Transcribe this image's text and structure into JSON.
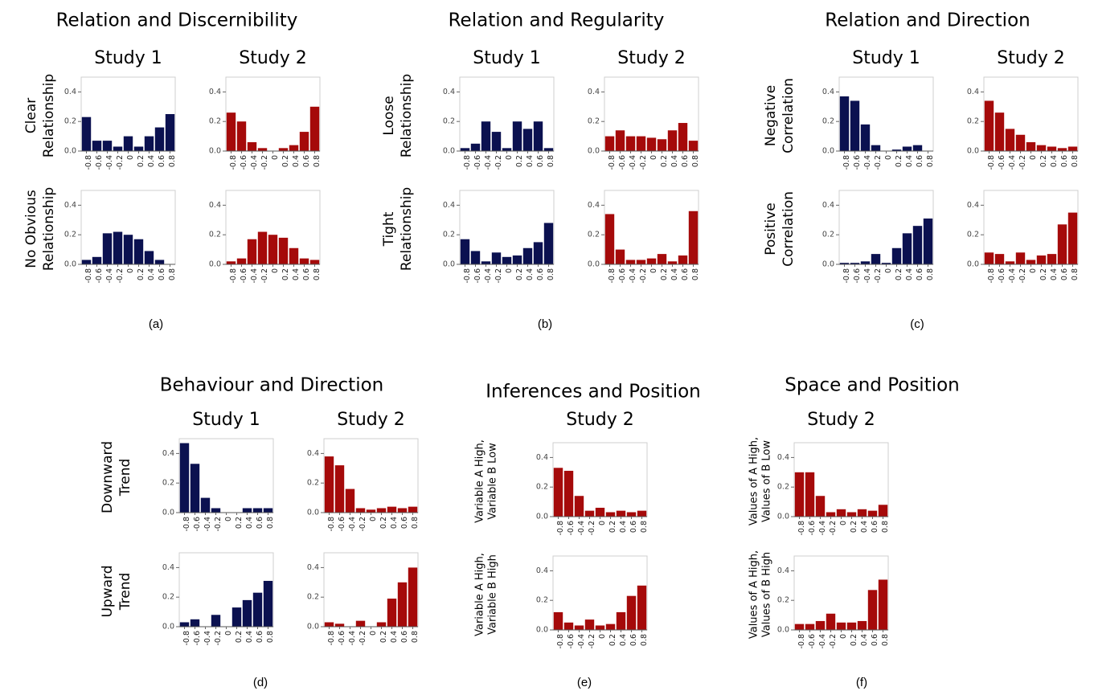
{
  "chart_data": [
    {
      "type": "bar",
      "id": "a",
      "title": "Relation and Discernibility",
      "caption": "(a)",
      "studies": [
        "Study 1",
        "Study 2"
      ],
      "rows": [
        {
          "label": [
            "Clear",
            "Relationship"
          ],
          "series": [
            {
              "study": "Study 1",
              "color": "#0b1150",
              "values": [
                0.23,
                0.07,
                0.07,
                0.03,
                0.1,
                0.03,
                0.1,
                0.16,
                0.25
              ]
            },
            {
              "study": "Study 2",
              "color": "#a50a0a",
              "values": [
                0.26,
                0.2,
                0.06,
                0.02,
                0.0,
                0.02,
                0.04,
                0.13,
                0.3
              ]
            }
          ]
        },
        {
          "label": [
            "No Obvious",
            "Relationship"
          ],
          "series": [
            {
              "study": "Study 1",
              "color": "#0b1150",
              "values": [
                0.03,
                0.05,
                0.21,
                0.22,
                0.2,
                0.17,
                0.09,
                0.03,
                0.0
              ]
            },
            {
              "study": "Study 2",
              "color": "#a50a0a",
              "values": [
                0.02,
                0.04,
                0.17,
                0.22,
                0.2,
                0.18,
                0.11,
                0.04,
                0.03
              ]
            }
          ]
        }
      ],
      "categories": [
        "-0.8",
        "-0.6",
        "-0.4",
        "-0.2",
        "0",
        "0.2",
        "0.4",
        "0.6",
        "0.8"
      ],
      "yticks": [
        "0.0",
        "0.2",
        "0.4"
      ],
      "ylim": [
        0,
        0.5
      ]
    },
    {
      "type": "bar",
      "id": "b",
      "title": "Relation and Regularity",
      "caption": "(b)",
      "studies": [
        "Study 1",
        "Study 2"
      ],
      "rows": [
        {
          "label": [
            "Loose",
            "Relationship"
          ],
          "series": [
            {
              "study": "Study 1",
              "color": "#0b1150",
              "values": [
                0.02,
                0.05,
                0.2,
                0.13,
                0.02,
                0.2,
                0.15,
                0.2,
                0.02
              ]
            },
            {
              "study": "Study 2",
              "color": "#a50a0a",
              "values": [
                0.1,
                0.14,
                0.1,
                0.1,
                0.09,
                0.08,
                0.14,
                0.19,
                0.07
              ]
            }
          ]
        },
        {
          "label": [
            "Tight",
            "Relationship"
          ],
          "series": [
            {
              "study": "Study 1",
              "color": "#0b1150",
              "values": [
                0.17,
                0.09,
                0.02,
                0.08,
                0.05,
                0.06,
                0.11,
                0.15,
                0.28
              ]
            },
            {
              "study": "Study 2",
              "color": "#a50a0a",
              "values": [
                0.34,
                0.1,
                0.03,
                0.03,
                0.04,
                0.07,
                0.02,
                0.06,
                0.36
              ]
            }
          ]
        }
      ],
      "categories": [
        "-0.8",
        "-0.6",
        "-0.4",
        "-0.2",
        "0",
        "0.2",
        "0.4",
        "0.6",
        "0.8"
      ],
      "yticks": [
        "0.0",
        "0.2",
        "0.4"
      ],
      "ylim": [
        0,
        0.5
      ]
    },
    {
      "type": "bar",
      "id": "c",
      "title": "Relation and Direction",
      "caption": "(c)",
      "studies": [
        "Study 1",
        "Study 2"
      ],
      "rows": [
        {
          "label": [
            "Negative",
            "Correlation"
          ],
          "series": [
            {
              "study": "Study 1",
              "color": "#0b1150",
              "values": [
                0.37,
                0.34,
                0.18,
                0.04,
                0.0,
                0.01,
                0.03,
                0.04,
                0.0
              ]
            },
            {
              "study": "Study 2",
              "color": "#a50a0a",
              "values": [
                0.34,
                0.26,
                0.15,
                0.11,
                0.06,
                0.04,
                0.03,
                0.02,
                0.03
              ]
            }
          ]
        },
        {
          "label": [
            "Positive",
            "Correlation"
          ],
          "series": [
            {
              "study": "Study 1",
              "color": "#0b1150",
              "values": [
                0.01,
                0.01,
                0.02,
                0.07,
                0.01,
                0.11,
                0.21,
                0.26,
                0.31
              ]
            },
            {
              "study": "Study 2",
              "color": "#a50a0a",
              "values": [
                0.08,
                0.07,
                0.02,
                0.08,
                0.03,
                0.06,
                0.07,
                0.27,
                0.35
              ]
            }
          ]
        }
      ],
      "categories": [
        "-0.8",
        "-0.6",
        "-0.4",
        "-0.2",
        "0",
        "0.2",
        "0.4",
        "0.6",
        "0.8"
      ],
      "yticks": [
        "0.0",
        "0.2",
        "0.4"
      ],
      "ylim": [
        0,
        0.5
      ]
    },
    {
      "type": "bar",
      "id": "d",
      "title": "Behaviour and Direction",
      "caption": "(d)",
      "studies": [
        "Study 1",
        "Study 2"
      ],
      "rows": [
        {
          "label": [
            "Downward",
            "Trend"
          ],
          "series": [
            {
              "study": "Study 1",
              "color": "#0b1150",
              "values": [
                0.47,
                0.33,
                0.1,
                0.03,
                0.0,
                0.0,
                0.03,
                0.03,
                0.03
              ]
            },
            {
              "study": "Study 2",
              "color": "#a50a0a",
              "values": [
                0.38,
                0.32,
                0.16,
                0.03,
                0.02,
                0.03,
                0.04,
                0.03,
                0.04
              ]
            }
          ]
        },
        {
          "label": [
            "Upward",
            "Trend"
          ],
          "series": [
            {
              "study": "Study 1",
              "color": "#0b1150",
              "values": [
                0.03,
                0.05,
                0.0,
                0.08,
                0.0,
                0.13,
                0.18,
                0.23,
                0.31
              ]
            },
            {
              "study": "Study 2",
              "color": "#a50a0a",
              "values": [
                0.03,
                0.02,
                0.0,
                0.04,
                0.0,
                0.03,
                0.19,
                0.3,
                0.4
              ]
            }
          ]
        }
      ],
      "categories": [
        "-0.8",
        "-0.6",
        "-0.4",
        "-0.2",
        "0",
        "0.2",
        "0.4",
        "0.6",
        "0.8"
      ],
      "yticks": [
        "0.0",
        "0.2",
        "0.4"
      ],
      "ylim": [
        0,
        0.5
      ]
    },
    {
      "type": "bar",
      "id": "e",
      "title": "Inferences and Position",
      "caption": "(e)",
      "studies": [
        "Study 2"
      ],
      "rows": [
        {
          "label": [
            "Variable A High,",
            "Variable B Low"
          ],
          "series": [
            {
              "study": "Study 2",
              "color": "#a50a0a",
              "values": [
                0.33,
                0.31,
                0.14,
                0.04,
                0.06,
                0.03,
                0.04,
                0.03,
                0.04
              ]
            }
          ]
        },
        {
          "label": [
            "Variable A High,",
            "Variable B High"
          ],
          "series": [
            {
              "study": "Study 2",
              "color": "#a50a0a",
              "values": [
                0.12,
                0.05,
                0.03,
                0.07,
                0.03,
                0.04,
                0.12,
                0.23,
                0.3
              ]
            }
          ]
        }
      ],
      "categories": [
        "-0.8",
        "-0.6",
        "-0.4",
        "-0.2",
        "0",
        "0.2",
        "0.4",
        "0.6",
        "0.8"
      ],
      "yticks": [
        "0.0",
        "0.2",
        "0.4"
      ],
      "ylim": [
        0,
        0.5
      ]
    },
    {
      "type": "bar",
      "id": "f",
      "title": "Space and Position",
      "caption": "(f)",
      "studies": [
        "Study 2"
      ],
      "rows": [
        {
          "label": [
            "Values of A High,",
            "Values of B Low"
          ],
          "series": [
            {
              "study": "Study 2",
              "color": "#a50a0a",
              "values": [
                0.3,
                0.3,
                0.14,
                0.03,
                0.05,
                0.03,
                0.05,
                0.04,
                0.08
              ]
            }
          ]
        },
        {
          "label": [
            "Values of A High,",
            "Values of B High"
          ],
          "series": [
            {
              "study": "Study 2",
              "color": "#a50a0a",
              "values": [
                0.04,
                0.04,
                0.06,
                0.11,
                0.05,
                0.05,
                0.06,
                0.27,
                0.34
              ]
            }
          ]
        }
      ],
      "categories": [
        "-0.8",
        "-0.6",
        "-0.4",
        "-0.2",
        "0",
        "0.2",
        "0.4",
        "0.6",
        "0.8"
      ],
      "yticks": [
        "0.0",
        "0.2",
        "0.4"
      ],
      "ylim": [
        0,
        0.5
      ]
    }
  ]
}
